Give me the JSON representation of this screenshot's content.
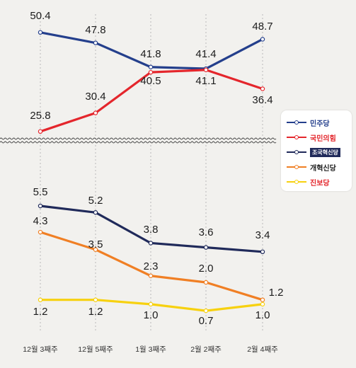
{
  "chart_data": [
    {
      "type": "line",
      "x": [
        "12월 3째주",
        "12월 5째주",
        "1월 3째주",
        "2월 2째주",
        "2월 4째주"
      ],
      "series": [
        {
          "name": "민주당",
          "color": "#243f8c",
          "values": [
            50.4,
            47.8,
            41.8,
            41.4,
            48.7
          ]
        },
        {
          "name": "국민의힘",
          "color": "#e4262c",
          "values": [
            25.8,
            30.4,
            40.5,
            41.1,
            36.4
          ]
        }
      ],
      "ylim": [
        20,
        55
      ],
      "legend": "right"
    },
    {
      "type": "line",
      "x": [
        "12월 3째주",
        "12월 5째주",
        "1월 3째주",
        "2월 2째주",
        "2월 4째주"
      ],
      "series": [
        {
          "name": "조국혁신당",
          "color": "#202a5a",
          "values": [
            5.5,
            5.2,
            3.8,
            3.6,
            3.4
          ]
        },
        {
          "name": "개혁신당",
          "color": "#f07f24",
          "values": [
            4.3,
            3.5,
            2.3,
            2.0,
            1.2
          ]
        },
        {
          "name": "진보당",
          "color": "#f7d10f",
          "values": [
            1.2,
            1.2,
            1.0,
            0.7,
            1.0
          ]
        }
      ],
      "ylim": [
        0,
        6
      ],
      "legend": "right"
    }
  ]
}
